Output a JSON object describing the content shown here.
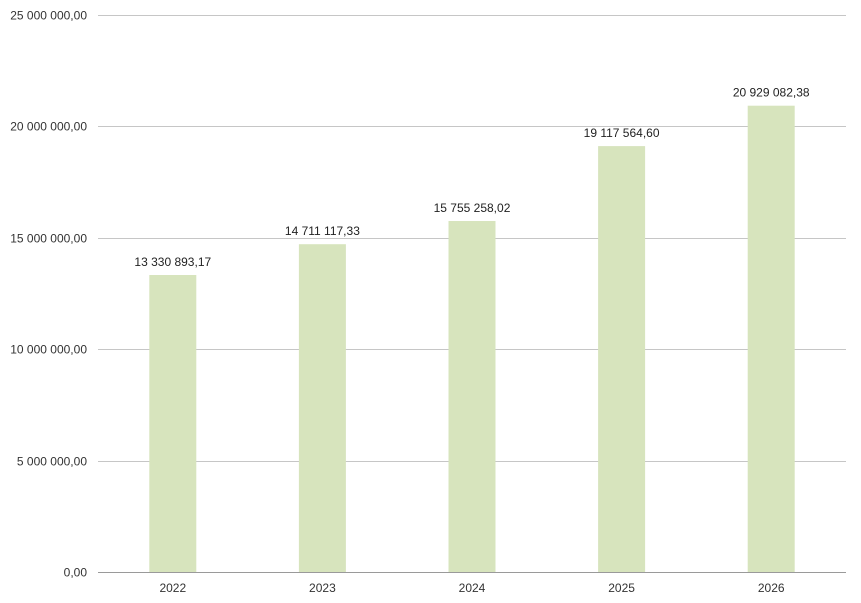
{
  "chart_data": {
    "type": "bar",
    "categories": [
      "2022",
      "2023",
      "2024",
      "2025",
      "2026"
    ],
    "values": [
      13330893.17,
      14711117.33,
      15755258.02,
      19117564.6,
      20929082.38
    ],
    "value_labels": [
      "13 330 893,17",
      "14 711 117,33",
      "15 755 258,02",
      "19 117 564,60",
      "20 929 082,38"
    ],
    "ylim": [
      0,
      25000000
    ],
    "yticks": [
      0,
      5000000,
      10000000,
      15000000,
      20000000,
      25000000
    ],
    "ytick_labels": [
      "0,00",
      "5 000 000,00",
      "10 000 000,00",
      "15 000 000,00",
      "20 000 000,00",
      "25 000 000,00"
    ],
    "grid": true,
    "bar_color": "#d7e4bd",
    "title": "",
    "xlabel": "",
    "ylabel": ""
  }
}
